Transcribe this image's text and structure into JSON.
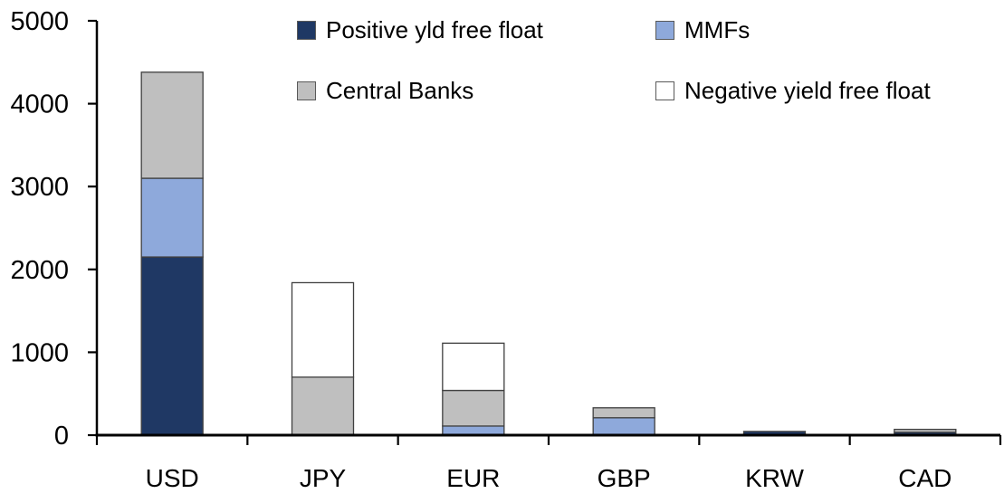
{
  "chart_data": {
    "type": "bar",
    "stacked": true,
    "title": "",
    "categories": [
      "USD",
      "JPY",
      "EUR",
      "GBP",
      "KRW",
      "CAD"
    ],
    "series": [
      {
        "name": "Positive yld free float",
        "color": "#1F3864",
        "values": [
          2150,
          0,
          0,
          0,
          45,
          35
        ]
      },
      {
        "name": "MMFs",
        "color": "#8EA9DB",
        "values": [
          950,
          0,
          110,
          210,
          0,
          0
        ]
      },
      {
        "name": "Central Banks",
        "color": "#BFBFBF",
        "values": [
          1280,
          700,
          430,
          120,
          0,
          35
        ]
      },
      {
        "name": "Negative yield free float",
        "color": "#FFFFFF",
        "values": [
          0,
          1140,
          570,
          0,
          0,
          0
        ]
      }
    ],
    "xlabel": "",
    "ylabel": "",
    "ylim": [
      0,
      5000
    ],
    "yticks": [
      0,
      1000,
      2000,
      3000,
      4000,
      5000
    ],
    "grid": false,
    "legend_position": "top",
    "axis_color": "#000000",
    "bar_border_color": "#404040"
  }
}
